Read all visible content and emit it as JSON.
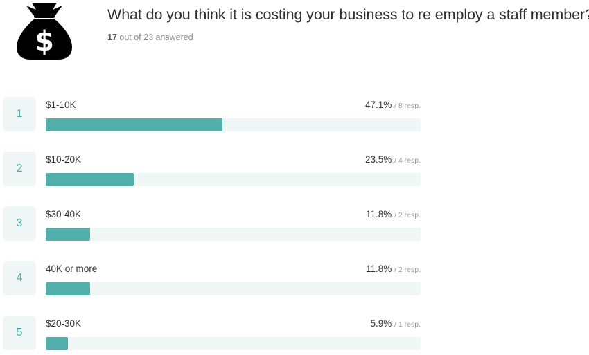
{
  "question": {
    "title": "What do you think it is costing your business to re employ a staff member?",
    "answered_count": "17",
    "answered_rest": " out of 23 answered",
    "icon": "money-bag-icon"
  },
  "colors": {
    "bar_fill": "#53afab",
    "bar_track": "#eef6f6",
    "rank_text": "#4aacab"
  },
  "chart_data": {
    "type": "bar",
    "title": "What do you think it is costing your business to re employ a staff member?",
    "categories": [
      "$1-10K",
      "$10-20K",
      "$30-40K",
      "40K or more",
      "$20-30K"
    ],
    "values": [
      47.1,
      23.5,
      11.8,
      11.8,
      5.9
    ],
    "responses": [
      8,
      4,
      2,
      2,
      1
    ],
    "ylim": [
      0,
      100
    ],
    "rows": [
      {
        "rank": "1",
        "label": "$1-10K",
        "percent": "47.1%",
        "resp": "/ 8 resp.",
        "value": 47.1
      },
      {
        "rank": "2",
        "label": "$10-20K",
        "percent": "23.5%",
        "resp": "/ 4 resp.",
        "value": 23.5
      },
      {
        "rank": "3",
        "label": "$30-40K",
        "percent": "11.8%",
        "resp": "/ 2 resp.",
        "value": 11.8
      },
      {
        "rank": "4",
        "label": "40K or more",
        "percent": "11.8%",
        "resp": "/ 2 resp.",
        "value": 11.8
      },
      {
        "rank": "5",
        "label": "$20-30K",
        "percent": "5.9%",
        "resp": "/ 1 resp.",
        "value": 5.9
      }
    ]
  }
}
